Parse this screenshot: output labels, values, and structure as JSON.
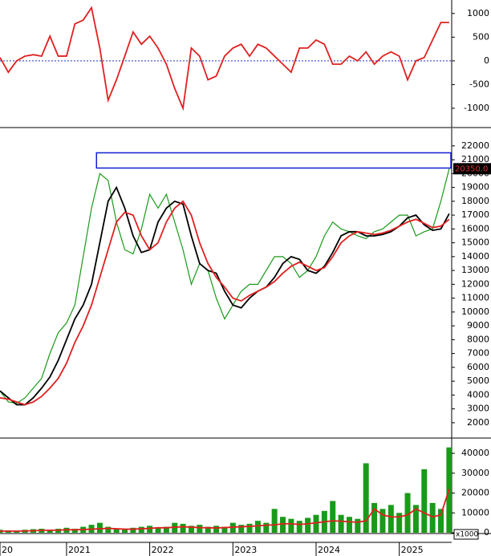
{
  "chart_data": [
    {
      "type": "line",
      "xlim": [
        2020.2,
        2025.63
      ],
      "ylim": [
        -1390,
        1250
      ],
      "yticks": [
        1000,
        500,
        0,
        -500,
        -1000
      ],
      "reference_line": {
        "value": 0,
        "color": "#2233cc"
      },
      "x": [
        2020.2,
        2020.3,
        2020.4,
        2020.5,
        2020.6,
        2020.7,
        2020.8,
        2020.9,
        2021.0,
        2021.1,
        2021.2,
        2021.3,
        2021.4,
        2021.5,
        2021.6,
        2021.7,
        2021.8,
        2021.9,
        2022.0,
        2022.1,
        2022.2,
        2022.3,
        2022.4,
        2022.5,
        2022.6,
        2022.7,
        2022.8,
        2022.9,
        2023.0,
        2023.1,
        2023.2,
        2023.3,
        2023.4,
        2023.5,
        2023.6,
        2023.7,
        2023.8,
        2023.9,
        2024.0,
        2024.1,
        2024.2,
        2024.3,
        2024.4,
        2024.5,
        2024.6,
        2024.7,
        2024.8,
        2024.9,
        2025.0,
        2025.1,
        2025.2,
        2025.3,
        2025.4,
        2025.5,
        2025.6
      ],
      "series": [
        {
          "color": "#e02020",
          "values": [
            70,
            -240,
            0,
            100,
            130,
            100,
            520,
            100,
            100,
            780,
            860,
            1120,
            270,
            -830,
            -400,
            100,
            610,
            350,
            520,
            270,
            -70,
            -580,
            -1000,
            270,
            100,
            -400,
            -320,
            100,
            270,
            350,
            100,
            350,
            270,
            100,
            -70,
            -240,
            270,
            270,
            440,
            350,
            -70,
            -70,
            100,
            0,
            190,
            -70,
            100,
            190,
            100,
            -400,
            0,
            70,
            440,
            810,
            810
          ]
        }
      ]
    },
    {
      "type": "line",
      "xlim": [
        2020.2,
        2025.63
      ],
      "ylim": [
        950,
        23150
      ],
      "yticks": [
        22000,
        21000,
        20000,
        19000,
        18000,
        17000,
        16000,
        15000,
        14000,
        13000,
        12000,
        11000,
        10000,
        9000,
        8000,
        7000,
        6000,
        5000,
        4000,
        3000,
        2000
      ],
      "zone": {
        "xmin": 2021.36,
        "ymin": 20400,
        "ymax": 21500,
        "color": "#1020d0"
      },
      "last_price": {
        "value": 20350,
        "label": "20350.0"
      },
      "x": [
        2020.2,
        2020.3,
        2020.4,
        2020.5,
        2020.6,
        2020.7,
        2020.8,
        2020.9,
        2021.0,
        2021.1,
        2021.2,
        2021.3,
        2021.4,
        2021.5,
        2021.6,
        2021.7,
        2021.8,
        2021.9,
        2022.0,
        2022.1,
        2022.2,
        2022.3,
        2022.4,
        2022.5,
        2022.6,
        2022.7,
        2022.8,
        2022.9,
        2023.0,
        2023.1,
        2023.2,
        2023.3,
        2023.4,
        2023.5,
        2023.6,
        2023.7,
        2023.8,
        2023.9,
        2024.0,
        2024.1,
        2024.2,
        2024.3,
        2024.4,
        2024.5,
        2024.6,
        2024.7,
        2024.8,
        2024.9,
        2025.0,
        2025.1,
        2025.2,
        2025.3,
        2025.4,
        2025.5,
        2025.6
      ],
      "series": [
        {
          "color": "#1a9a1a",
          "values": [
            4300,
            3500,
            3400,
            3800,
            4500,
            5200,
            7000,
            8500,
            9200,
            10500,
            14000,
            17500,
            20000,
            19500,
            16500,
            14500,
            14200,
            16000,
            18500,
            17500,
            18500,
            16500,
            14500,
            12000,
            13500,
            13000,
            11000,
            9500,
            10500,
            11500,
            12000,
            12000,
            13000,
            14000,
            14000,
            13500,
            12500,
            13000,
            14000,
            15500,
            16500,
            16000,
            15800,
            15500,
            15300,
            15800,
            16000,
            16500,
            17000,
            17000,
            15500,
            15800,
            16000,
            18000,
            20350
          ]
        },
        {
          "color": "#000000",
          "values": [
            4300,
            3800,
            3300,
            3300,
            3800,
            4500,
            5300,
            6500,
            8000,
            9500,
            10500,
            12000,
            15000,
            18000,
            19000,
            17500,
            15500,
            14300,
            14500,
            16500,
            17500,
            18000,
            17800,
            15500,
            13500,
            13000,
            12800,
            11500,
            10500,
            10300,
            11000,
            11500,
            11800,
            12500,
            13500,
            14000,
            13800,
            13000,
            12800,
            13300,
            14300,
            15500,
            15800,
            15800,
            15500,
            15500,
            15600,
            15800,
            16200,
            16800,
            17000,
            16300,
            15900,
            16000,
            17100
          ]
        },
        {
          "color": "#e02020",
          "values": [
            3800,
            3700,
            3500,
            3300,
            3500,
            3900,
            4500,
            5200,
            6300,
            7800,
            9000,
            10500,
            12500,
            14500,
            16500,
            17200,
            17000,
            15500,
            14500,
            15000,
            16500,
            17500,
            18000,
            17000,
            15000,
            13500,
            12500,
            11800,
            11000,
            10800,
            11200,
            11500,
            11800,
            12200,
            12800,
            13300,
            13600,
            13300,
            13000,
            13200,
            14000,
            15000,
            15500,
            15800,
            15700,
            15600,
            15700,
            15900,
            16200,
            16500,
            16700,
            16400,
            16100,
            16200,
            16700
          ]
        }
      ]
    },
    {
      "type": "bar",
      "xlim": [
        2020.2,
        2025.63
      ],
      "ylim": [
        0,
        46900
      ],
      "yticks": [
        40000,
        30000,
        20000,
        10000,
        0
      ],
      "unit_label": "x1000",
      "xticks": [
        {
          "value": 2020.2,
          "label": "20"
        },
        2021,
        2022,
        2023,
        2024,
        2025
      ],
      "x": [
        2020.2,
        2020.3,
        2020.4,
        2020.5,
        2020.6,
        2020.7,
        2020.8,
        2020.9,
        2021.0,
        2021.1,
        2021.2,
        2021.3,
        2021.4,
        2021.5,
        2021.6,
        2021.7,
        2021.8,
        2021.9,
        2022.0,
        2022.1,
        2022.2,
        2022.3,
        2022.4,
        2022.5,
        2022.6,
        2022.7,
        2022.8,
        2022.9,
        2023.0,
        2023.1,
        2023.2,
        2023.3,
        2023.4,
        2023.5,
        2023.6,
        2023.7,
        2023.8,
        2023.9,
        2024.0,
        2024.1,
        2024.2,
        2024.3,
        2024.4,
        2024.5,
        2024.6,
        2024.7,
        2024.8,
        2024.9,
        2025.0,
        2025.1,
        2025.2,
        2025.3,
        2025.4,
        2025.5,
        2025.6
      ],
      "values": [
        1500,
        1200,
        1000,
        1500,
        1800,
        2000,
        1500,
        2000,
        2500,
        2000,
        3000,
        4000,
        5000,
        3000,
        2000,
        2000,
        2500,
        3000,
        3500,
        2500,
        3000,
        5000,
        4500,
        3500,
        4000,
        3000,
        3500,
        3000,
        5000,
        4000,
        4500,
        6000,
        5000,
        12000,
        8000,
        7000,
        6000,
        7500,
        9000,
        11000,
        16000,
        9000,
        8000,
        7000,
        35000,
        15000,
        12000,
        14000,
        10000,
        20000,
        14000,
        32000,
        15000,
        12000,
        43000
      ],
      "color": "#1a9a1a",
      "average": {
        "color": "#e02020",
        "values": [
          800,
          800,
          800,
          900,
          1000,
          1200,
          1200,
          1300,
          1500,
          1500,
          1600,
          1800,
          2000,
          2200,
          2000,
          1800,
          1800,
          2000,
          2200,
          2500,
          2500,
          2800,
          3000,
          2800,
          2600,
          2500,
          2400,
          2600,
          2800,
          3000,
          3200,
          3500,
          3800,
          4000,
          4500,
          4500,
          4200,
          4500,
          5000,
          5500,
          6000,
          5800,
          5500,
          5300,
          6000,
          12000,
          9000,
          8000,
          8000,
          9000,
          12000,
          10000,
          8000,
          9000,
          22000
        ]
      }
    }
  ]
}
